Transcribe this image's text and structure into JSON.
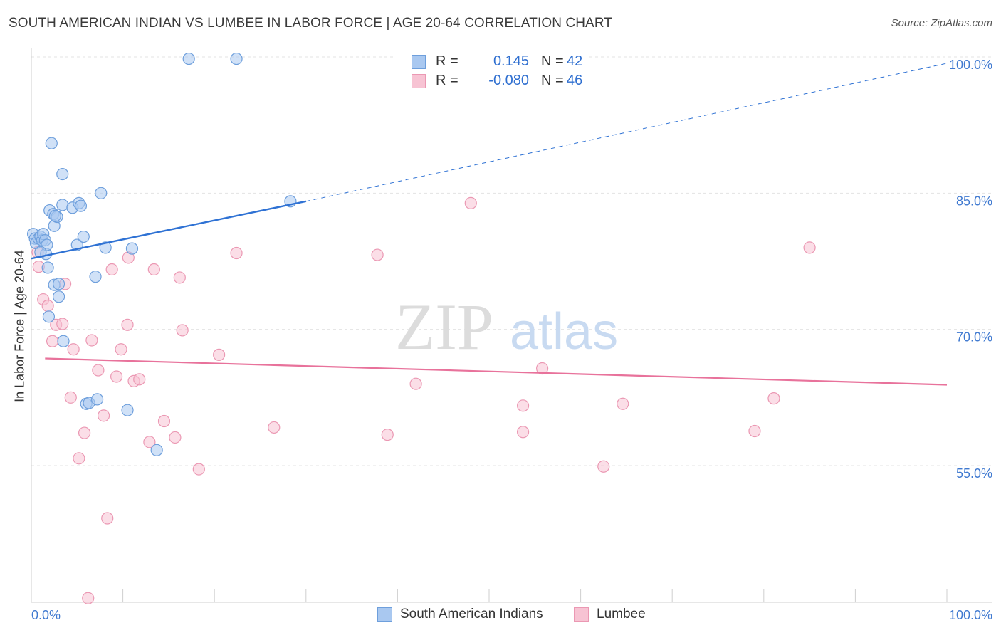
{
  "header": {
    "title": "SOUTH AMERICAN INDIAN VS LUMBEE IN LABOR FORCE | AGE 20-64 CORRELATION CHART",
    "source_label": "Source:",
    "source_value": "ZipAtlas.com"
  },
  "watermark": {
    "zip": "ZIP",
    "atlas": "atlas"
  },
  "legend": {
    "r_label": "R =",
    "n_label": "N =",
    "rows": [
      {
        "r": "0.145",
        "n": "42"
      },
      {
        "r": "-0.080",
        "n": "46"
      }
    ]
  },
  "colors": {
    "blue_fill": "#a9c8f0",
    "blue_stroke": "#6e9fdc",
    "blue_line": "#2f72d4",
    "pink_fill": "#f7c3d3",
    "pink_stroke": "#eb98b3",
    "pink_line": "#e8729b",
    "grid": "#e3e3e3",
    "axis_text": "#3f79d0"
  },
  "chart_data": {
    "type": "scatter",
    "title": "SOUTH AMERICAN INDIAN VS LUMBEE IN LABOR FORCE | AGE 20-64 CORRELATION CHART",
    "xlabel": "",
    "ylabel": "In Labor Force | Age 20-64",
    "xlim": [
      0,
      100
    ],
    "ylim": [
      40,
      102
    ],
    "x_tick_labels": [
      "0.0%",
      "100.0%"
    ],
    "y_ticks": [
      55,
      70,
      85,
      100
    ],
    "y_tick_labels": [
      "55.0%",
      "70.0%",
      "85.0%",
      "100.0%"
    ],
    "legend_position": "bottom-center",
    "series": [
      {
        "name": "South American Indians",
        "r": 0.145,
        "n": 42,
        "trend": {
          "x0": 0,
          "y0": 77.8,
          "x1": 30,
          "y1": 84.1,
          "dashed_to_x": 100,
          "dashed_to_y": 99.3
        },
        "points": [
          [
            0.2,
            80.5
          ],
          [
            0.4,
            80.0
          ],
          [
            0.5,
            79.5
          ],
          [
            0.8,
            80.0
          ],
          [
            1.0,
            80.2
          ],
          [
            1.2,
            79.8
          ],
          [
            1.3,
            80.5
          ],
          [
            1.5,
            79.8
          ],
          [
            1.6,
            78.3
          ],
          [
            1.7,
            79.3
          ],
          [
            1.8,
            76.8
          ],
          [
            1.9,
            71.4
          ],
          [
            2.2,
            90.5
          ],
          [
            2.0,
            83.1
          ],
          [
            2.4,
            82.7
          ],
          [
            2.5,
            81.4
          ],
          [
            2.8,
            82.4
          ],
          [
            2.5,
            74.9
          ],
          [
            3.0,
            75.0
          ],
          [
            3.0,
            73.6
          ],
          [
            3.4,
            87.1
          ],
          [
            3.4,
            83.7
          ],
          [
            3.5,
            68.7
          ],
          [
            4.5,
            83.4
          ],
          [
            5.0,
            79.3
          ],
          [
            5.2,
            83.9
          ],
          [
            5.4,
            83.6
          ],
          [
            5.7,
            80.2
          ],
          [
            6.0,
            61.8
          ],
          [
            6.3,
            61.9
          ],
          [
            7.0,
            75.8
          ],
          [
            7.2,
            62.3
          ],
          [
            7.6,
            85.0
          ],
          [
            8.1,
            79.0
          ],
          [
            10.5,
            61.1
          ],
          [
            11.0,
            78.9
          ],
          [
            13.7,
            56.7
          ],
          [
            17.2,
            99.8
          ],
          [
            22.4,
            99.8
          ],
          [
            28.3,
            84.1
          ],
          [
            1.0,
            78.5
          ],
          [
            2.6,
            82.5
          ]
        ]
      },
      {
        "name": "Lumbee",
        "r": -0.08,
        "n": 46,
        "trend": {
          "x0": 1.5,
          "y0": 66.8,
          "x1": 100,
          "y1": 63.9
        },
        "points": [
          [
            0.7,
            78.5
          ],
          [
            0.8,
            76.9
          ],
          [
            1.3,
            73.3
          ],
          [
            1.8,
            72.6
          ],
          [
            2.3,
            68.7
          ],
          [
            2.7,
            70.5
          ],
          [
            3.4,
            70.6
          ],
          [
            3.7,
            75.0
          ],
          [
            4.3,
            62.5
          ],
          [
            4.6,
            67.8
          ],
          [
            5.2,
            55.8
          ],
          [
            5.8,
            58.6
          ],
          [
            6.2,
            40.4
          ],
          [
            6.6,
            68.8
          ],
          [
            7.3,
            65.5
          ],
          [
            7.9,
            60.5
          ],
          [
            8.3,
            49.2
          ],
          [
            8.8,
            76.6
          ],
          [
            9.3,
            64.8
          ],
          [
            9.8,
            67.8
          ],
          [
            10.5,
            70.5
          ],
          [
            10.6,
            77.9
          ],
          [
            11.2,
            64.3
          ],
          [
            11.8,
            64.5
          ],
          [
            12.9,
            57.6
          ],
          [
            13.4,
            76.6
          ],
          [
            14.5,
            59.9
          ],
          [
            15.7,
            58.1
          ],
          [
            16.2,
            75.7
          ],
          [
            16.5,
            69.9
          ],
          [
            18.3,
            54.6
          ],
          [
            20.5,
            67.2
          ],
          [
            22.4,
            78.4
          ],
          [
            26.5,
            59.2
          ],
          [
            37.8,
            78.2
          ],
          [
            38.9,
            58.4
          ],
          [
            42.0,
            64.0
          ],
          [
            48.0,
            83.9
          ],
          [
            53.7,
            61.6
          ],
          [
            53.7,
            58.7
          ],
          [
            55.8,
            65.7
          ],
          [
            62.5,
            54.9
          ],
          [
            64.6,
            61.8
          ],
          [
            79.0,
            58.8
          ],
          [
            81.1,
            62.4
          ],
          [
            85.0,
            79.0
          ]
        ]
      }
    ]
  },
  "bottom_legend": [
    "South American Indians",
    "Lumbee"
  ]
}
